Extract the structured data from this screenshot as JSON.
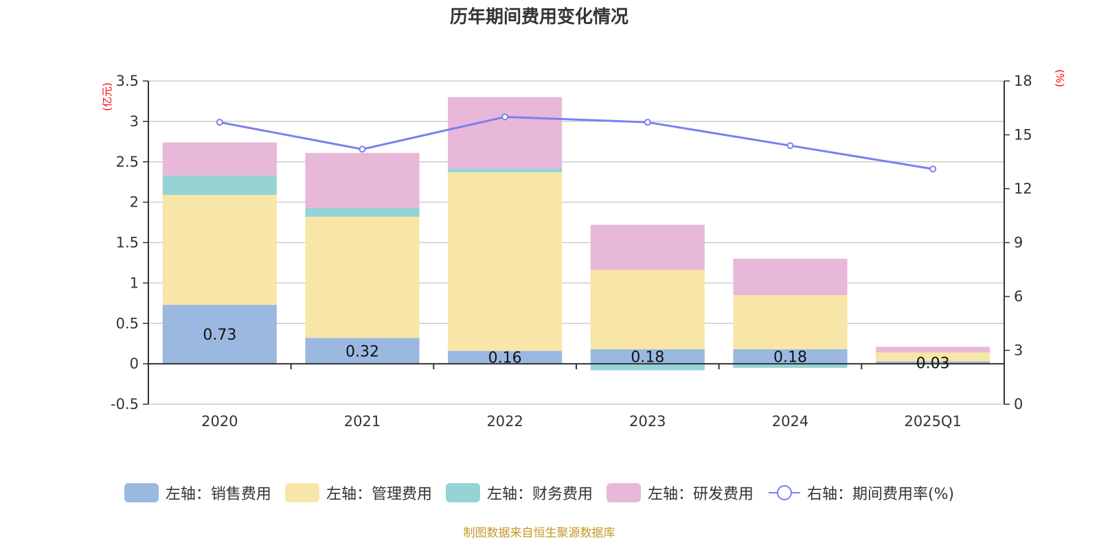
{
  "chart_data": {
    "type": "bar",
    "title": "历年期间费用变化情况",
    "categories": [
      "2020",
      "2021",
      "2022",
      "2023",
      "2024",
      "2025Q1"
    ],
    "left_axis": {
      "label": "(亿元)",
      "ylim": [
        -0.5,
        3.5
      ],
      "ticks": [
        "-0.5",
        "0",
        "0.5",
        "1",
        "1.5",
        "2",
        "2.5",
        "3",
        "3.5"
      ]
    },
    "right_axis": {
      "label": "(%)",
      "ylim": [
        0,
        18
      ],
      "ticks": [
        "0",
        "3",
        "6",
        "9",
        "12",
        "15",
        "18"
      ]
    },
    "stacked": true,
    "grid": true,
    "legend_position": "bottom",
    "series": [
      {
        "name": "左轴：销售费用",
        "type": "bar",
        "axis": "left",
        "color": "#9bb8e1",
        "values": [
          0.73,
          0.32,
          0.16,
          0.18,
          0.18,
          0.03
        ],
        "labels": [
          "0.73",
          "0.32",
          "0.16",
          "0.18",
          "0.18",
          "0.03"
        ]
      },
      {
        "name": "左轴：管理费用",
        "type": "bar",
        "axis": "left",
        "color": "#f8e6a8",
        "values": [
          1.36,
          1.5,
          2.21,
          0.98,
          0.67,
          0.11
        ]
      },
      {
        "name": "左轴：财务费用",
        "type": "bar",
        "axis": "left",
        "color": "#96d3d4",
        "values": [
          0.24,
          0.11,
          0.05,
          -0.08,
          -0.05,
          0.0
        ]
      },
      {
        "name": "左轴：研发费用",
        "type": "bar",
        "axis": "left",
        "color": "#e7b8d8",
        "values": [
          0.41,
          0.68,
          0.88,
          0.56,
          0.45,
          0.07
        ]
      },
      {
        "name": "右轴：期间费用率(%)",
        "type": "line",
        "axis": "right",
        "color": "#7b7ff0",
        "values": [
          15.7,
          14.2,
          16.0,
          15.7,
          14.4,
          13.1
        ]
      }
    ]
  },
  "footer": {
    "source": "制图数据来自恒生聚源数据库"
  }
}
